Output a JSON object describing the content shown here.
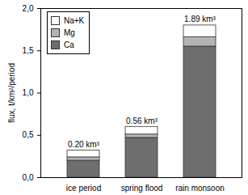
{
  "chart_data": {
    "type": "bar",
    "stacked": true,
    "y_label": "flux, t/km²/period",
    "categories": [
      "ice period",
      "spring flood",
      "rain monsoon"
    ],
    "series": [
      {
        "name": "Ca",
        "color": "#6e6e6e",
        "values": [
          0.2,
          0.47,
          1.55
        ]
      },
      {
        "name": "Mg",
        "color": "#b4b4b4",
        "values": [
          0.04,
          0.04,
          0.11
        ]
      },
      {
        "name": "Na+K",
        "color": "#ffffff",
        "values": [
          0.08,
          0.09,
          0.14
        ]
      }
    ],
    "annotations": [
      {
        "category": "ice period",
        "text": "0.20 km³"
      },
      {
        "category": "spring flood",
        "text": "0.56 km³"
      },
      {
        "category": "rain monsoon",
        "text": "1.89 km³"
      }
    ],
    "ylim": [
      0,
      2.0
    ],
    "yticks": [
      {
        "value": 0,
        "label": "0,0"
      },
      {
        "value": 0.5,
        "label": "0,5"
      },
      {
        "value": 1.0,
        "label": "1,0"
      },
      {
        "value": 1.5,
        "label": "1,5"
      },
      {
        "value": 2.0,
        "label": "2,0"
      }
    ],
    "legend": "top-left"
  }
}
